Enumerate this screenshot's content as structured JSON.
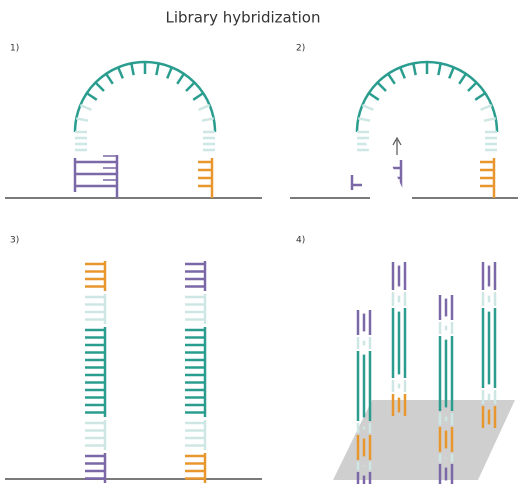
{
  "header": {
    "title": "Library hybridization"
  },
  "panels": [
    {
      "label": "1)"
    },
    {
      "label": "2)"
    },
    {
      "label": "3)"
    },
    {
      "label": "4)"
    }
  ]
}
